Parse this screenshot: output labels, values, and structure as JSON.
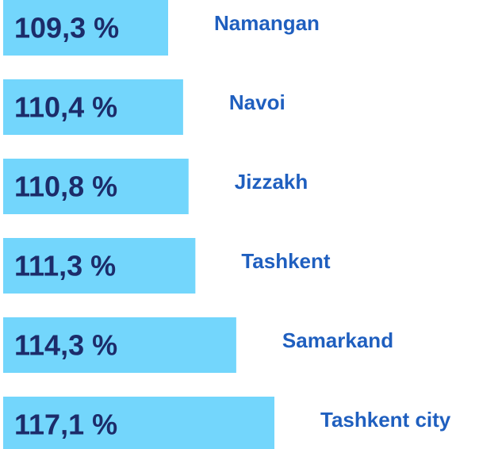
{
  "chart_data": {
    "type": "bar",
    "orientation": "horizontal",
    "categories": [
      "Namangan",
      "Navoi",
      "Jizzakh",
      "Tashkent",
      "Samarkand",
      "Tashkent city"
    ],
    "values": [
      109.3,
      110.4,
      110.8,
      111.3,
      114.3,
      117.1
    ],
    "value_labels": [
      "109,3 %",
      "110,4 %",
      "110,8 %",
      "111,3 %",
      "114,3 %",
      "117,1 %"
    ],
    "color": "#73d6fc"
  }
}
